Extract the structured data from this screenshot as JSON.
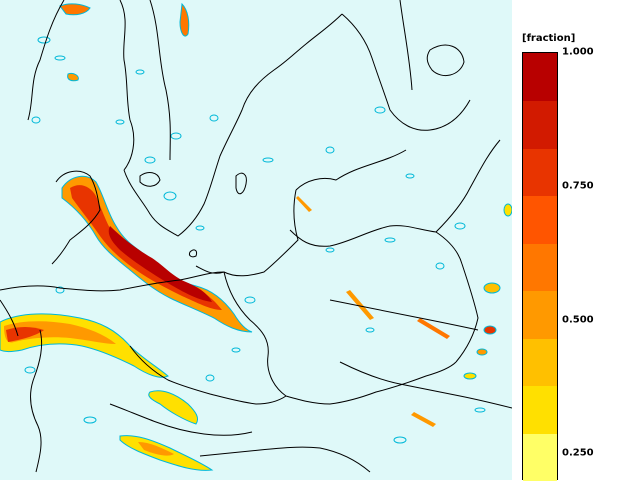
{
  "legend": {
    "units": "[fraction]",
    "ticks": [
      {
        "value": 1.0,
        "label": "1.000"
      },
      {
        "value": 0.75,
        "label": "0.750"
      },
      {
        "value": 0.5,
        "label": "0.500"
      },
      {
        "value": 0.25,
        "label": "0.250"
      }
    ],
    "range": [
      0.2,
      1.0
    ],
    "colors": [
      "#ffff66",
      "#ffe000",
      "#ffc000",
      "#ff9900",
      "#ff7700",
      "#ff5500",
      "#e83400",
      "#d21a00",
      "#b80000"
    ]
  },
  "map": {
    "sea_color": "#dff9f9",
    "outline_color": "#000000",
    "contour_color": "#00b8d8"
  }
}
